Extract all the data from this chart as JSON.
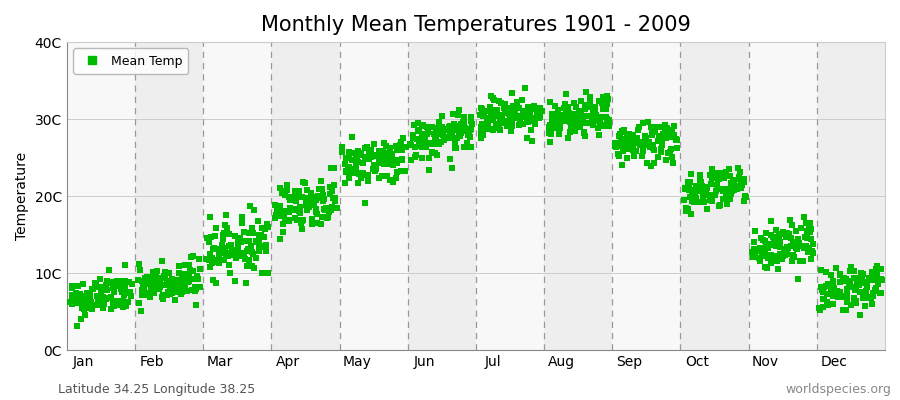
{
  "title": "Monthly Mean Temperatures 1901 - 2009",
  "ylabel": "Temperature",
  "ylim": [
    0,
    40
  ],
  "yticks": [
    0,
    10,
    20,
    30,
    40
  ],
  "ytick_labels": [
    "0C",
    "10C",
    "20C",
    "30C",
    "40C"
  ],
  "months": [
    "Jan",
    "Feb",
    "Mar",
    "Apr",
    "May",
    "Jun",
    "Jul",
    "Aug",
    "Sep",
    "Oct",
    "Nov",
    "Dec"
  ],
  "month_means": [
    6.5,
    8.0,
    13.0,
    18.5,
    24.0,
    27.0,
    30.0,
    29.5,
    26.5,
    20.5,
    13.0,
    7.5
  ],
  "month_stds": [
    1.3,
    1.5,
    1.8,
    1.6,
    1.5,
    1.4,
    1.3,
    1.3,
    1.4,
    1.4,
    1.6,
    1.4
  ],
  "month_trend": [
    0.01,
    0.01,
    0.01,
    0.01,
    0.01,
    0.01,
    0.01,
    0.01,
    0.01,
    0.01,
    0.01,
    0.01
  ],
  "n_years": 109,
  "marker_color": "#00BB00",
  "marker": "s",
  "marker_size": 4,
  "background_color": "#FFFFFF",
  "plot_bg_color": "#FFFFFF",
  "band_color_odd": "#EEEEEE",
  "band_color_even": "#F8F8F8",
  "dashed_line_color": "#999999",
  "title_fontsize": 15,
  "axis_fontsize": 10,
  "tick_fontsize": 10,
  "legend_label": "Mean Temp",
  "footer_left": "Latitude 34.25 Longitude 38.25",
  "footer_right": "worldspecies.org",
  "footer_fontsize": 9
}
